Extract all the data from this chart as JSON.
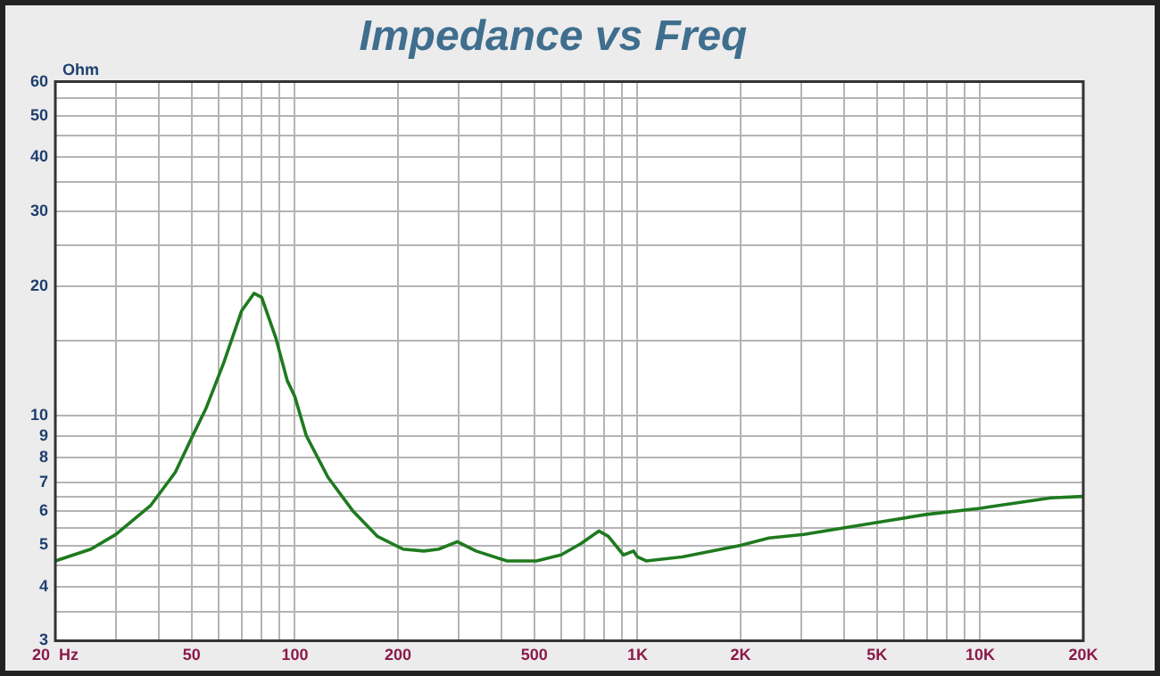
{
  "chart_data": {
    "type": "line",
    "title": "Impedance vs Freq",
    "ylabel": "Ohm",
    "x": [
      20,
      25.4,
      30,
      38,
      44.8,
      50,
      55,
      62,
      70,
      76,
      80,
      88,
      95,
      100,
      108,
      125,
      148,
      174,
      207,
      238,
      263,
      298,
      338,
      416,
      507,
      598,
      684,
      771,
      822,
      910,
      974,
      1000,
      1060,
      1350,
      2000,
      2420,
      3060,
      4970,
      6960,
      10000,
      10680,
      16100,
      20000
    ],
    "series": [
      {
        "color": "#1e7a1e",
        "values": [
          4.6,
          4.9,
          5.3,
          6.2,
          7.4,
          8.9,
          10.4,
          13.3,
          17.6,
          19.3,
          18.9,
          15.2,
          12.1,
          11.1,
          9.0,
          7.2,
          6.0,
          5.25,
          4.9,
          4.85,
          4.9,
          5.1,
          4.85,
          4.6,
          4.6,
          4.75,
          5.05,
          5.4,
          5.25,
          4.75,
          4.85,
          4.7,
          4.6,
          4.7,
          5.0,
          5.2,
          5.3,
          5.65,
          5.9,
          6.1,
          6.15,
          6.45,
          6.5
        ]
      }
    ],
    "log": "xy",
    "grid": true,
    "marker": "none",
    "line_style": "solid",
    "xlim": [
      20,
      20000
    ],
    "ylim": [
      3,
      60
    ],
    "xticks": [
      {
        "value": 20,
        "label": "20  Hz"
      },
      {
        "value": 30,
        "label": null
      },
      {
        "value": 40,
        "label": null
      },
      50,
      {
        "value": 60,
        "label": null
      },
      {
        "value": 70,
        "label": null
      },
      {
        "value": 80,
        "label": null
      },
      {
        "value": 90,
        "label": null
      },
      100,
      200,
      {
        "value": 300,
        "label": null
      },
      {
        "value": 400,
        "label": null
      },
      500,
      {
        "value": 600,
        "label": null
      },
      {
        "value": 700,
        "label": null
      },
      {
        "value": 800,
        "label": null
      },
      {
        "value": 900,
        "label": null
      },
      {
        "value": 1000,
        "label": "1K"
      },
      {
        "value": 2000,
        "label": "2K"
      },
      {
        "value": 3000,
        "label": null
      },
      {
        "value": 4000,
        "label": null
      },
      {
        "value": 5000,
        "label": "5K"
      },
      {
        "value": 6000,
        "label": null
      },
      {
        "value": 7000,
        "label": null
      },
      {
        "value": 8000,
        "label": null
      },
      {
        "value": 9000,
        "label": null
      },
      {
        "value": 10000,
        "label": "10K"
      },
      {
        "value": 20000,
        "label": "20K"
      }
    ],
    "yticks": [
      3,
      {
        "value": 3.5,
        "label": null
      },
      4,
      {
        "value": 4.5,
        "label": null
      },
      5,
      {
        "value": 5.5,
        "label": null
      },
      6,
      {
        "value": 6.5,
        "label": null
      },
      7,
      8,
      9,
      10,
      {
        "value": 15,
        "label": null
      },
      20,
      {
        "value": 25,
        "label": null
      },
      30,
      {
        "value": 35,
        "label": null
      },
      40,
      {
        "value": 45,
        "label": null
      },
      50,
      {
        "value": 55,
        "label": null
      },
      60
    ]
  }
}
